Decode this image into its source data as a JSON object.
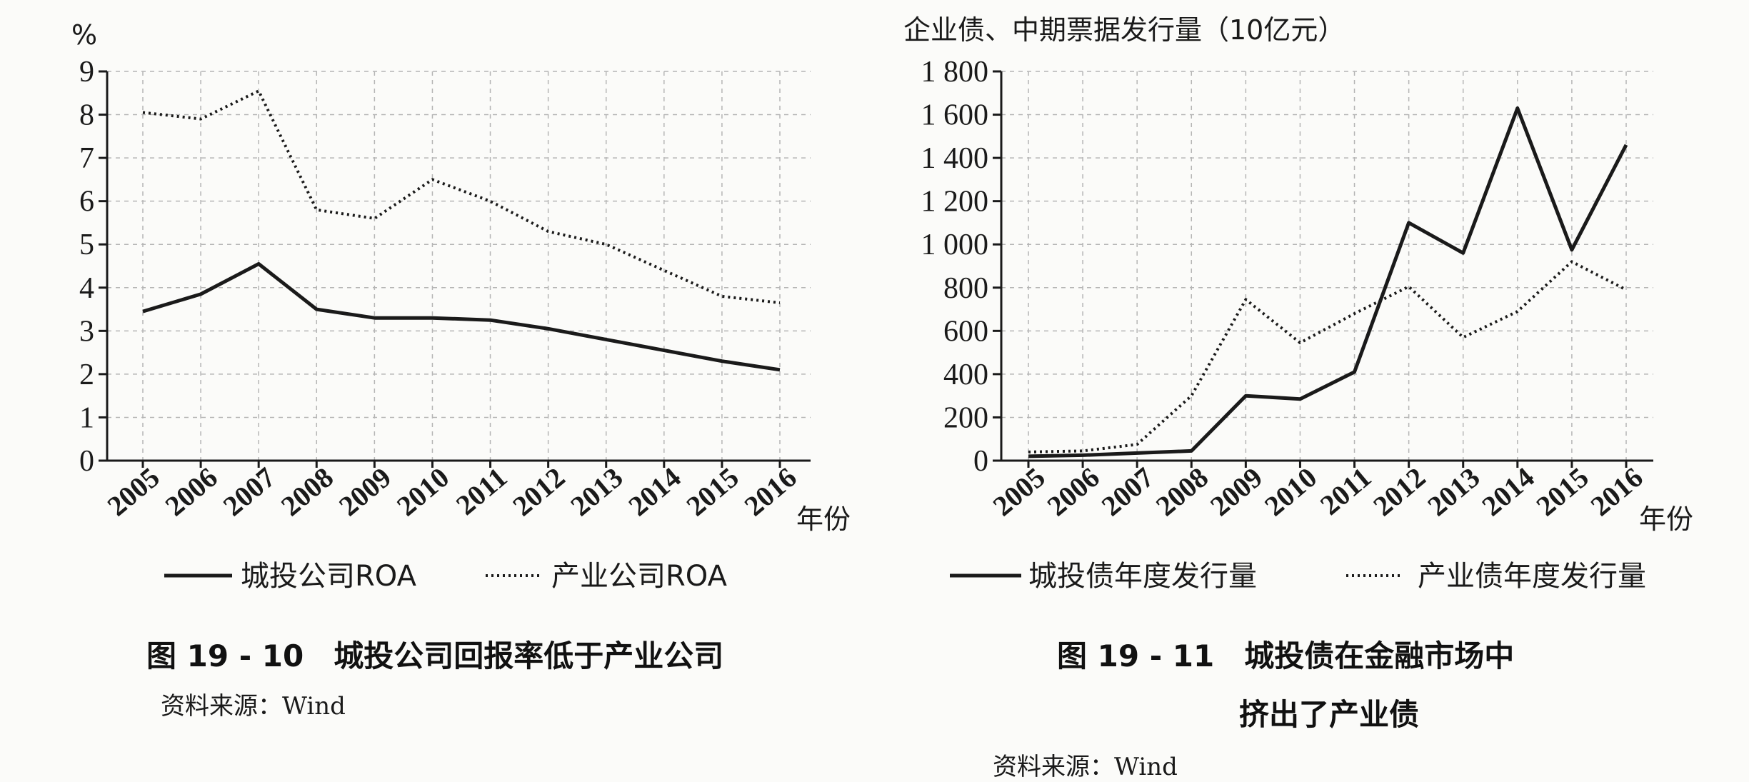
{
  "chart_data": [
    {
      "type": "line",
      "ylabel": "%",
      "xlabel": "年份",
      "ylim": [
        0,
        9
      ],
      "yticks": [
        "0",
        "1",
        "2",
        "3",
        "4",
        "5",
        "6",
        "7",
        "8",
        "9"
      ],
      "categories": [
        "2005",
        "2006",
        "2007",
        "2008",
        "2009",
        "2010",
        "2011",
        "2012",
        "2013",
        "2014",
        "2015",
        "2016"
      ],
      "series": [
        {
          "name": "城投公司ROA",
          "style": "solid",
          "values": [
            3.45,
            3.85,
            4.55,
            3.5,
            3.3,
            3.3,
            3.25,
            3.05,
            2.8,
            2.55,
            2.3,
            2.1
          ]
        },
        {
          "name": "产业公司ROA",
          "style": "dotted",
          "values": [
            8.05,
            7.9,
            8.55,
            5.8,
            5.6,
            6.5,
            6.0,
            5.3,
            5.0,
            4.4,
            3.8,
            3.65
          ]
        }
      ],
      "grid": true,
      "legend": "bottom",
      "caption": "图 19 - 10　城投公司回报率低于产业公司",
      "source": "资料来源：Wind"
    },
    {
      "type": "line",
      "ylabel": "企业债、中期票据发行量（10亿元）",
      "xlabel": "年份",
      "ylim": [
        0,
        1800
      ],
      "yticks": [
        "0",
        "200",
        "400",
        "600",
        "800",
        "1 000",
        "1 200",
        "1 400",
        "1 600",
        "1 800"
      ],
      "categories": [
        "2005",
        "2006",
        "2007",
        "2008",
        "2009",
        "2010",
        "2011",
        "2012",
        "2013",
        "2014",
        "2015",
        "2016"
      ],
      "series": [
        {
          "name": "城投债年度发行量",
          "style": "solid",
          "values": [
            20,
            25,
            35,
            45,
            300,
            285,
            410,
            1100,
            960,
            1630,
            975,
            1460
          ]
        },
        {
          "name": "产业债年度发行量",
          "style": "dotted",
          "values": [
            40,
            45,
            75,
            300,
            745,
            545,
            680,
            805,
            570,
            690,
            920,
            790
          ]
        }
      ],
      "grid": true,
      "legend": "bottom",
      "caption_lines": [
        "图 19 - 11　城投债在金融市场中",
        "挤出了产业债"
      ],
      "source": "资料来源：Wind"
    }
  ]
}
